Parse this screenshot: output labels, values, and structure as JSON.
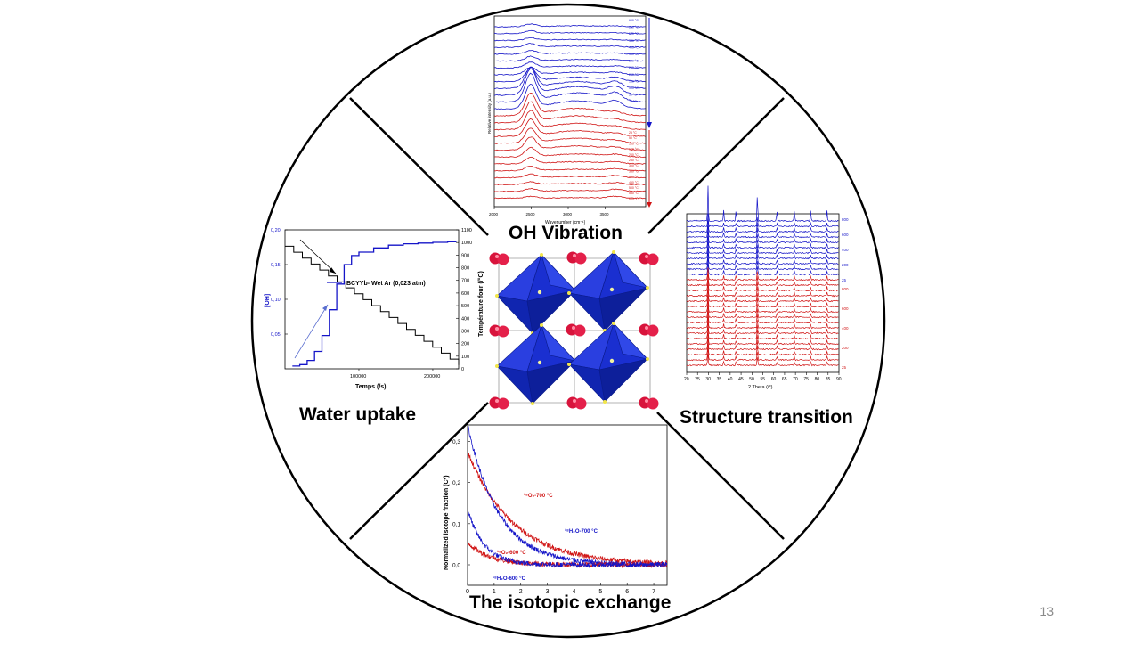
{
  "slide": {
    "page_number": "13",
    "center_label": "OH Vibration",
    "sections": {
      "water_uptake": "Water uptake",
      "structure_transition": "Structure transition",
      "isotopic_exchange": "The isotopic exchange"
    }
  },
  "colors": {
    "blue": "#1515c8",
    "red": "#d01414",
    "octahedra": "#1a2fd0",
    "atom": "#d8143c",
    "black": "#000000"
  },
  "chart_data": [
    {
      "type": "line",
      "id": "oh-vibration-spectra",
      "xlabel": "Wavenumber (cm⁻¹)",
      "ylabel": "Relative intensity (a.u.)",
      "xticks": [
        "2000",
        "2500",
        "3000",
        "3500"
      ],
      "series_blue_labels": [
        "600 °C",
        "550 °C",
        "500 °C",
        "450 °C",
        "400 °C",
        "350 °C",
        "300 °C",
        "250 °C",
        "200 °C",
        "150 °C",
        "100 °C",
        "50 °C",
        "25 °C"
      ],
      "series_red_labels": [
        "25 °C",
        "50 °C",
        "100 °C",
        "150 °C",
        "200 °C",
        "250 °C",
        "300 °C",
        "350 °C",
        "400 °C",
        "450 °C",
        "500 °C",
        "550 °C",
        "600 °C"
      ]
    },
    {
      "type": "line",
      "id": "water-uptake",
      "xlabel": "Temps (/s)",
      "ylabel": "[OH]",
      "y2label": "Température four (/°C)",
      "yticks": [
        "0,05",
        "0,10",
        "0,15",
        "0,20"
      ],
      "xticks": [
        "100000",
        "200000"
      ],
      "y2ticks": [
        "0",
        "100",
        "200",
        "300",
        "400",
        "500",
        "600",
        "700",
        "800",
        "900",
        "1000",
        "1100"
      ],
      "legend": "BCYYb- Wet Ar (0,023 atm)",
      "ylim": [
        0.0,
        0.2
      ],
      "y2lim": [
        0,
        1100
      ],
      "xlim": [
        0,
        235000
      ],
      "series": [
        {
          "name": "BCYYb- Wet Ar (0,023 atm)",
          "color": "#1515c8",
          "x": [
            10000,
            20000,
            30000,
            40000,
            50000,
            60000,
            70000,
            80000,
            90000,
            100000,
            120000,
            140000,
            160000,
            180000,
            200000,
            220000,
            232000
          ],
          "y": [
            0.004,
            0.006,
            0.012,
            0.025,
            0.048,
            0.085,
            0.122,
            0.15,
            0.163,
            0.168,
            0.174,
            0.178,
            0.18,
            0.181,
            0.182,
            0.183,
            0.183
          ]
        },
        {
          "name": "Température four",
          "axis": "y2",
          "color": "#000000",
          "x": [
            0,
            235000
          ],
          "y": [
            970,
            30
          ],
          "steps": 20
        }
      ]
    },
    {
      "type": "line",
      "id": "xrd-structure-transition",
      "xlabel": "2 Theta (/°)",
      "xticks": [
        "20",
        "25",
        "30",
        "35",
        "40",
        "45",
        "50",
        "55",
        "60",
        "65",
        "70",
        "75",
        "80",
        "85",
        "90"
      ],
      "right_ticks_blue": [
        "800",
        "600",
        "400",
        "200",
        "25"
      ],
      "right_ticks_red": [
        "800",
        "600",
        "400",
        "200",
        "25"
      ],
      "xlim": [
        20,
        90
      ],
      "peak_positions": [
        29.8,
        37.0,
        42.7,
        52.5,
        61.5,
        69.5,
        77.0,
        84.5
      ]
    },
    {
      "type": "line",
      "id": "isotopic-exchange",
      "xlabel": "",
      "ylabel": "Normalized isotope fraction (C*)",
      "yticks": [
        "0,0",
        "0,1",
        "0,2",
        "0,3"
      ],
      "xticks": [
        "0",
        "1",
        "2",
        "3",
        "4",
        "5",
        "6",
        "7"
      ],
      "xlim": [
        0,
        7.5
      ],
      "ylim": [
        0,
        0.34
      ],
      "series": [
        {
          "name": "¹⁸O₂-700 °C",
          "color": "#d01414",
          "amplitude": 0.275,
          "decay": 0.58
        },
        {
          "name": "¹⁸H₂O-700 °C",
          "color": "#1515c8",
          "amplitude": 0.34,
          "decay": 0.85
        },
        {
          "name": "¹⁸O₂-600 °C",
          "color": "#d01414",
          "amplitude": 0.055,
          "decay": 1.2
        },
        {
          "name": "¹⁸H₂O-600 °C",
          "color": "#1515c8",
          "amplitude": 0.135,
          "decay": 1.6
        }
      ],
      "labels": [
        "¹⁸O₂-700 °C",
        "¹⁸H₂O-700 °C",
        "¹⁸O₂-600 °C",
        "¹⁸H₂O-600 °C"
      ]
    }
  ]
}
